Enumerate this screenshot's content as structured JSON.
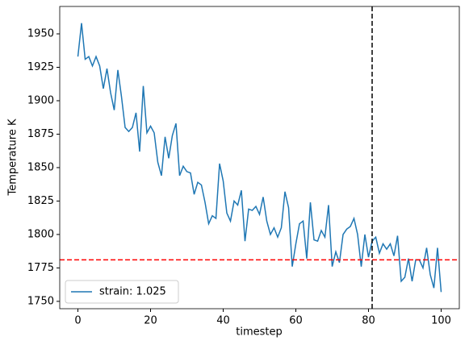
{
  "chart_data": {
    "type": "line",
    "x_label": "timestep",
    "y_label": "Temperature K",
    "x": [
      0,
      1,
      2,
      3,
      4,
      5,
      6,
      7,
      8,
      9,
      10,
      11,
      12,
      13,
      14,
      15,
      16,
      17,
      18,
      19,
      20,
      21,
      22,
      23,
      24,
      25,
      26,
      27,
      28,
      29,
      30,
      31,
      32,
      33,
      34,
      35,
      36,
      37,
      38,
      39,
      40,
      41,
      42,
      43,
      44,
      45,
      46,
      47,
      48,
      49,
      50,
      51,
      52,
      53,
      54,
      55,
      56,
      57,
      58,
      59,
      60,
      61,
      62,
      63,
      64,
      65,
      66,
      67,
      68,
      69,
      70,
      71,
      72,
      73,
      74,
      75,
      76,
      77,
      78,
      79,
      80,
      81,
      82,
      83,
      84,
      85,
      86,
      87,
      88,
      89,
      90,
      91,
      92,
      93,
      94,
      95,
      96,
      97,
      98,
      99,
      100
    ],
    "series": [
      {
        "name": "strain: 1.025",
        "color": "#1f77b4",
        "values": [
          1933,
          1958,
          1931,
          1933,
          1926,
          1933,
          1926,
          1909,
          1924,
          1906,
          1893,
          1923,
          1903,
          1880,
          1877,
          1880,
          1891,
          1862,
          1911,
          1876,
          1881,
          1876,
          1854,
          1844,
          1873,
          1857,
          1874,
          1883,
          1844,
          1851,
          1847,
          1846,
          1830,
          1839,
          1837,
          1824,
          1808,
          1814,
          1812,
          1853,
          1840,
          1816,
          1810,
          1825,
          1822,
          1833,
          1795,
          1819,
          1818,
          1821,
          1815,
          1828,
          1810,
          1800,
          1805,
          1798,
          1805,
          1832,
          1820,
          1776,
          1793,
          1808,
          1810,
          1782,
          1824,
          1796,
          1795,
          1803,
          1798,
          1822,
          1776,
          1787,
          1779,
          1800,
          1804,
          1806,
          1812,
          1800,
          1776,
          1800,
          1783,
          1795,
          1798,
          1786,
          1793,
          1789,
          1793,
          1784,
          1799,
          1765,
          1768,
          1782,
          1765,
          1781,
          1781,
          1775,
          1790,
          1770,
          1760,
          1790,
          1757
        ]
      }
    ],
    "hlines": [
      {
        "value": 1781,
        "color": "#ff0000"
      }
    ],
    "vlines": [
      {
        "value": 81,
        "color": "#000000"
      }
    ],
    "xlim": [
      -5,
      105
    ],
    "ylim": [
      1744.5,
      1970.5
    ],
    "xticks": [
      0,
      20,
      40,
      60,
      80,
      100
    ],
    "yticks": [
      1750,
      1775,
      1800,
      1825,
      1850,
      1875,
      1900,
      1925,
      1950
    ],
    "legend": "lower left"
  }
}
